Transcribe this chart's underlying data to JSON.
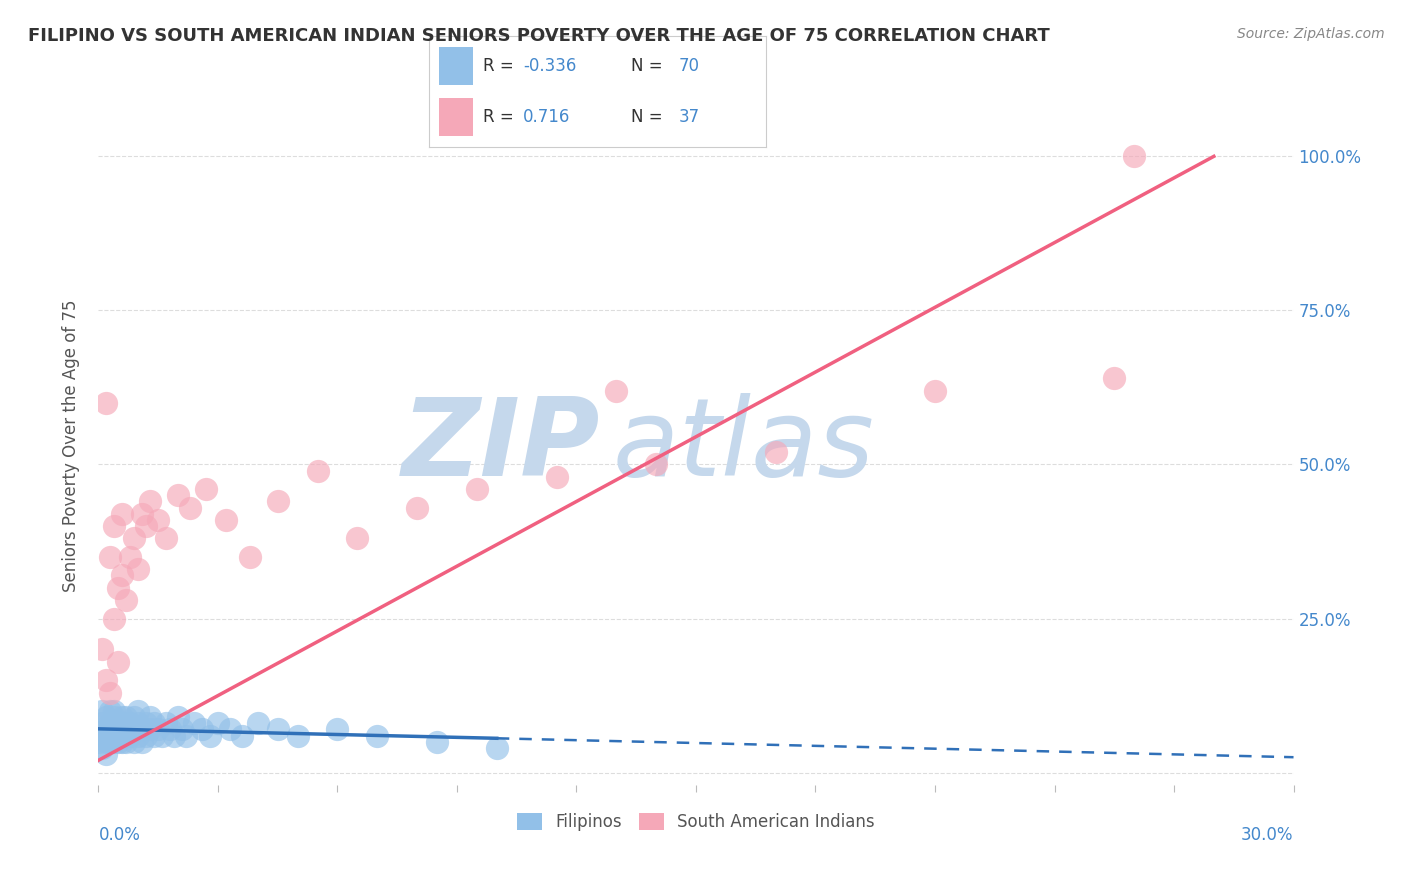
{
  "title": "FILIPINO VS SOUTH AMERICAN INDIAN SENIORS POVERTY OVER THE AGE OF 75 CORRELATION CHART",
  "source": "Source: ZipAtlas.com",
  "ylabel": "Seniors Poverty Over the Age of 75",
  "xlim": [
    0.0,
    0.3
  ],
  "ylim": [
    -0.02,
    1.08
  ],
  "filipino_R": -0.336,
  "filipino_N": 70,
  "south_american_R": 0.716,
  "south_american_N": 37,
  "filipino_color": "#92C0E8",
  "south_american_color": "#F5A8B8",
  "filipino_line_color": "#3070B8",
  "south_american_line_color": "#F06080",
  "legend_label_filipino": "Filipinos",
  "legend_label_south_american": "South American Indians",
  "watermark_zip": "ZIP",
  "watermark_atlas": "atlas",
  "watermark_color": "#C5D8EC",
  "background_color": "#FFFFFF",
  "grid_color": "#DDDDDD",
  "filipino_x": [
    0.0,
    0.001,
    0.001,
    0.001,
    0.001,
    0.002,
    0.002,
    0.002,
    0.002,
    0.002,
    0.003,
    0.003,
    0.003,
    0.003,
    0.003,
    0.004,
    0.004,
    0.004,
    0.004,
    0.004,
    0.005,
    0.005,
    0.005,
    0.005,
    0.006,
    0.006,
    0.006,
    0.006,
    0.007,
    0.007,
    0.007,
    0.007,
    0.008,
    0.008,
    0.008,
    0.009,
    0.009,
    0.009,
    0.01,
    0.01,
    0.01,
    0.011,
    0.011,
    0.012,
    0.012,
    0.013,
    0.013,
    0.014,
    0.014,
    0.015,
    0.016,
    0.017,
    0.018,
    0.019,
    0.02,
    0.021,
    0.022,
    0.024,
    0.026,
    0.028,
    0.03,
    0.033,
    0.036,
    0.04,
    0.045,
    0.05,
    0.06,
    0.07,
    0.085,
    0.1
  ],
  "filipino_y": [
    0.05,
    0.08,
    0.06,
    0.04,
    0.1,
    0.07,
    0.05,
    0.09,
    0.06,
    0.03,
    0.08,
    0.06,
    0.1,
    0.05,
    0.07,
    0.09,
    0.06,
    0.08,
    0.05,
    0.1,
    0.07,
    0.05,
    0.08,
    0.06,
    0.09,
    0.06,
    0.07,
    0.05,
    0.08,
    0.06,
    0.09,
    0.05,
    0.07,
    0.08,
    0.06,
    0.09,
    0.05,
    0.07,
    0.08,
    0.06,
    0.1,
    0.07,
    0.05,
    0.08,
    0.06,
    0.09,
    0.07,
    0.06,
    0.08,
    0.07,
    0.06,
    0.08,
    0.07,
    0.06,
    0.09,
    0.07,
    0.06,
    0.08,
    0.07,
    0.06,
    0.08,
    0.07,
    0.06,
    0.08,
    0.07,
    0.06,
    0.07,
    0.06,
    0.05,
    0.04
  ],
  "south_american_x": [
    0.001,
    0.002,
    0.002,
    0.003,
    0.003,
    0.004,
    0.004,
    0.005,
    0.005,
    0.006,
    0.006,
    0.007,
    0.008,
    0.009,
    0.01,
    0.011,
    0.012,
    0.013,
    0.015,
    0.017,
    0.02,
    0.023,
    0.027,
    0.032,
    0.038,
    0.045,
    0.055,
    0.065,
    0.08,
    0.095,
    0.115,
    0.14,
    0.17,
    0.21,
    0.255,
    0.26,
    0.13
  ],
  "south_american_y": [
    0.2,
    0.15,
    0.6,
    0.35,
    0.13,
    0.25,
    0.4,
    0.3,
    0.18,
    0.32,
    0.42,
    0.28,
    0.35,
    0.38,
    0.33,
    0.42,
    0.4,
    0.44,
    0.41,
    0.38,
    0.45,
    0.43,
    0.46,
    0.41,
    0.35,
    0.44,
    0.49,
    0.38,
    0.43,
    0.46,
    0.48,
    0.5,
    0.52,
    0.62,
    0.64,
    1.0,
    0.62
  ]
}
